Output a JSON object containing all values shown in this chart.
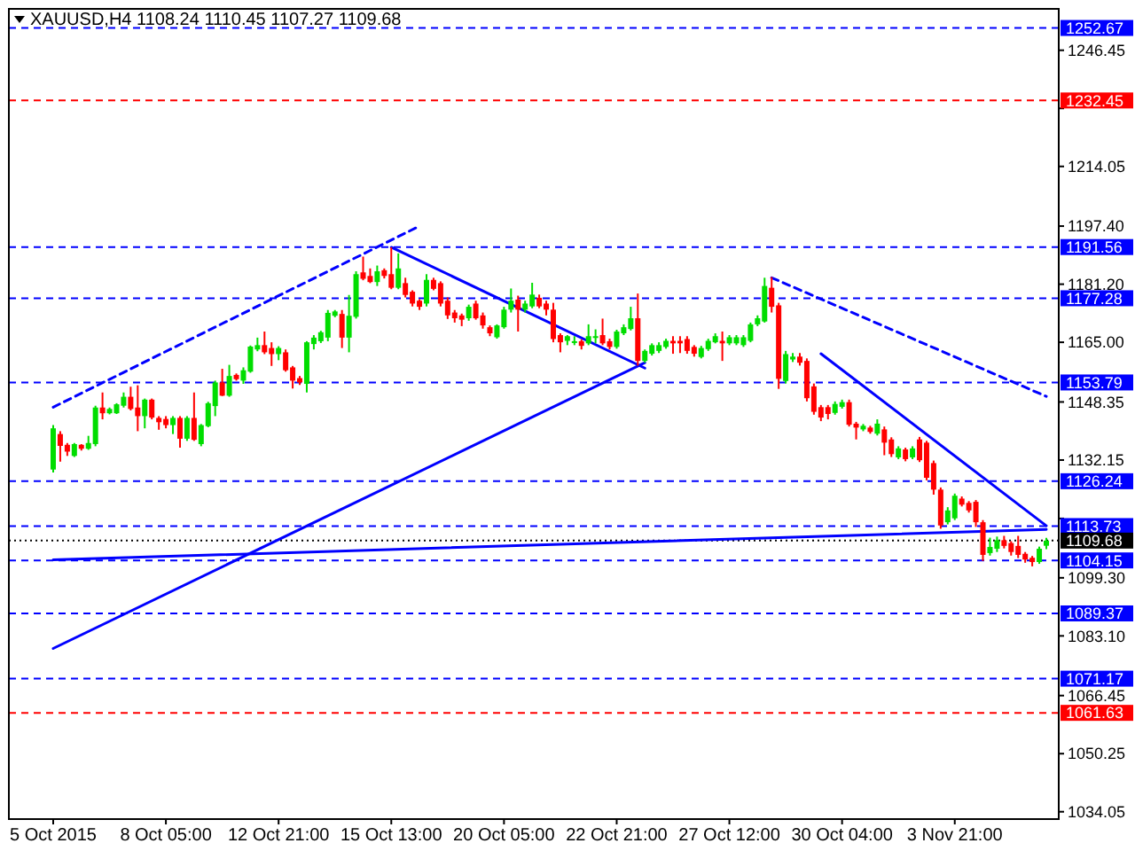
{
  "chart_data": {
    "type": "candlestick",
    "title": "XAUUSD,H4  1108.24 1110.45 1107.27 1109.68",
    "categories": [
      "5 Oct 2015",
      null,
      null,
      null,
      null,
      null,
      null,
      null,
      null,
      null,
      null,
      null,
      null,
      null,
      null,
      null,
      "8 Oct 05:00",
      null,
      null,
      null,
      null,
      null,
      null,
      null,
      null,
      null,
      null,
      null,
      null,
      null,
      null,
      null,
      "12 Oct 21:00",
      null,
      null,
      null,
      null,
      null,
      null,
      null,
      null,
      null,
      null,
      null,
      null,
      null,
      null,
      null,
      "15 Oct 13:00",
      null,
      null,
      null,
      null,
      null,
      null,
      null,
      null,
      null,
      null,
      null,
      null,
      null,
      null,
      null,
      "20 Oct 05:00",
      null,
      null,
      null,
      null,
      null,
      null,
      null,
      null,
      null,
      null,
      null,
      null,
      null,
      null,
      null,
      "22 Oct 21:00",
      null,
      null,
      null,
      null,
      null,
      null,
      null,
      null,
      null,
      null,
      null,
      null,
      null,
      null,
      null,
      "27 Oct 12:00",
      null,
      null,
      null,
      null,
      null,
      null,
      null,
      null,
      null,
      null,
      null,
      null,
      null,
      null,
      null,
      "30 Oct 04:00",
      null,
      null,
      null,
      null,
      null,
      null,
      null,
      null,
      null,
      null,
      null,
      null,
      null,
      null,
      null,
      "3 Nov 21:00",
      null,
      null,
      null,
      null,
      null,
      null,
      null,
      null,
      null,
      null,
      null,
      null,
      null
    ],
    "ylim": [
      1032,
      1258
    ],
    "yticks": [
      {
        "value": 1034.05,
        "label": "1034.05"
      },
      {
        "value": 1050.25,
        "label": "1050.25"
      },
      {
        "value": 1066.45,
        "label": "1066.45"
      },
      {
        "value": 1083.1,
        "label": "1083.10"
      },
      {
        "value": 1099.3,
        "label": "1099.30"
      },
      {
        "value": 1115.85,
        "label": null
      },
      {
        "value": 1132.15,
        "label": "1132.15"
      },
      {
        "value": 1148.35,
        "label": "1148.35"
      },
      {
        "value": 1165,
        "label": "1165.00"
      },
      {
        "value": 1181.2,
        "label": "1181.20"
      },
      {
        "value": 1197.4,
        "label": "1197.40"
      },
      {
        "value": 1214.05,
        "label": "1214.05"
      },
      {
        "value": 1230.25,
        "label": null
      },
      {
        "value": 1246.45,
        "label": "1246.45"
      }
    ],
    "ref_lines": [
      {
        "axis": "y",
        "value": 1252.67,
        "label": "1252.67",
        "color": "#0000ff",
        "line_style": "dashed"
      },
      {
        "axis": "y",
        "value": 1232.45,
        "label": "1232.45",
        "color": "#ff0000",
        "line_style": "dashed"
      },
      {
        "axis": "y",
        "value": 1191.56,
        "label": "1191.56",
        "color": "#0000ff",
        "line_style": "dashed"
      },
      {
        "axis": "y",
        "value": 1177.28,
        "label": "1177.28",
        "color": "#0000ff",
        "line_style": "dashed"
      },
      {
        "axis": "y",
        "value": 1153.79,
        "label": "1153.79",
        "color": "#0000ff",
        "line_style": "dashed"
      },
      {
        "axis": "y",
        "value": 1126.24,
        "label": "1126.24",
        "color": "#0000ff",
        "line_style": "dashed"
      },
      {
        "axis": "y",
        "value": 1113.73,
        "label": "1113.73",
        "color": "#0000ff",
        "line_style": "dashed"
      },
      {
        "axis": "y",
        "value": 1109.68,
        "label": "1109.68",
        "color": "#000000",
        "line_style": "dotted"
      },
      {
        "axis": "y",
        "value": 1104.15,
        "label": "1104.15",
        "color": "#0000ff",
        "line_style": "dashed"
      },
      {
        "axis": "y",
        "value": 1089.37,
        "label": "1089.37",
        "color": "#0000ff",
        "line_style": "dashed"
      },
      {
        "axis": "y",
        "value": 1071.17,
        "label": "1071.17",
        "color": "#0000ff",
        "line_style": "dashed"
      },
      {
        "axis": "y",
        "value": 1061.63,
        "label": "1061.63",
        "color": "#ff0000",
        "line_style": "dashed"
      }
    ],
    "series": [
      {
        "type": "line",
        "color": "#0000ff",
        "line_style": "solid",
        "values": [
          1104.3,
          null,
          null,
          null,
          null,
          null,
          null,
          null,
          null,
          null,
          null,
          null,
          null,
          null,
          null,
          null,
          null,
          null,
          null,
          null,
          null,
          null,
          null,
          null,
          null,
          null,
          null,
          null,
          null,
          null,
          null,
          null,
          null,
          null,
          null,
          null,
          null,
          null,
          null,
          null,
          null,
          null,
          null,
          null,
          null,
          null,
          null,
          null,
          null,
          null,
          null,
          null,
          null,
          null,
          null,
          null,
          null,
          null,
          null,
          null,
          null,
          null,
          null,
          null,
          null,
          null,
          null,
          null,
          null,
          null,
          null,
          null,
          null,
          null,
          null,
          null,
          null,
          null,
          null,
          null,
          null,
          null,
          null,
          null,
          null,
          null,
          null,
          null,
          null,
          null,
          null,
          null,
          null,
          null,
          null,
          null,
          null,
          null,
          null,
          null,
          null,
          null,
          null,
          null,
          null,
          null,
          null,
          null,
          null,
          null,
          null,
          null,
          null,
          null,
          null,
          null,
          null,
          null,
          null,
          null,
          null,
          null,
          null,
          null,
          null,
          null,
          null,
          null,
          null,
          null,
          null,
          null,
          null,
          null,
          null,
          null,
          null,
          null,
          null,
          null,
          null,
          1112.8
        ]
      },
      {
        "type": "line",
        "color": "#0000ff",
        "line_style": "solid",
        "values": [
          1079.6,
          null,
          null,
          null,
          null,
          null,
          null,
          null,
          null,
          null,
          null,
          null,
          null,
          null,
          null,
          null,
          null,
          null,
          null,
          null,
          null,
          null,
          null,
          null,
          null,
          null,
          null,
          null,
          null,
          null,
          null,
          null,
          null,
          null,
          null,
          null,
          null,
          null,
          null,
          null,
          null,
          null,
          null,
          null,
          null,
          null,
          null,
          null,
          null,
          null,
          null,
          null,
          null,
          null,
          null,
          null,
          null,
          null,
          null,
          null,
          null,
          null,
          null,
          null,
          null,
          null,
          null,
          null,
          null,
          null,
          null,
          null,
          null,
          null,
          null,
          null,
          null,
          null,
          null,
          null,
          null,
          null,
          null,
          null,
          1159.3,
          null,
          null,
          null,
          null,
          null,
          null,
          null,
          null,
          null,
          null,
          null,
          null,
          null,
          null,
          null,
          null,
          null,
          null,
          null,
          null,
          null,
          null,
          null,
          null,
          null,
          null,
          null,
          null,
          null,
          null,
          null,
          null,
          null,
          null,
          null,
          null,
          null,
          null,
          null,
          null,
          null,
          null,
          null,
          null,
          null,
          null,
          null,
          null,
          null,
          null,
          null,
          null,
          null,
          null,
          null,
          null,
          null
        ]
      },
      {
        "type": "line",
        "color": "#0000ff",
        "line_style": "solid",
        "values": [
          null,
          null,
          null,
          null,
          null,
          null,
          null,
          null,
          null,
          null,
          null,
          null,
          null,
          null,
          null,
          null,
          null,
          null,
          null,
          null,
          null,
          null,
          null,
          null,
          null,
          null,
          null,
          null,
          null,
          null,
          null,
          null,
          null,
          null,
          null,
          null,
          null,
          null,
          null,
          null,
          null,
          null,
          null,
          null,
          null,
          null,
          null,
          null,
          1191.5,
          null,
          null,
          null,
          null,
          null,
          null,
          null,
          null,
          null,
          null,
          null,
          null,
          null,
          null,
          null,
          null,
          null,
          null,
          null,
          null,
          null,
          null,
          null,
          null,
          null,
          null,
          null,
          null,
          null,
          null,
          null,
          null,
          null,
          null,
          null,
          1157.8,
          null,
          null,
          null,
          null,
          null,
          null,
          null,
          null,
          null,
          null,
          null,
          null,
          null,
          null,
          null,
          null,
          null,
          null,
          null,
          null,
          null,
          null,
          null,
          null,
          null,
          null,
          null,
          null,
          null,
          null,
          null,
          null,
          null,
          null,
          null,
          null,
          null,
          null,
          null,
          null,
          null,
          null,
          null,
          null,
          null,
          null,
          null,
          null,
          null,
          null,
          null,
          null,
          null,
          null,
          null,
          null,
          null
        ]
      },
      {
        "type": "line",
        "color": "#0000ff",
        "line_style": "dashed",
        "values": [
          1146.9,
          null,
          null,
          null,
          null,
          null,
          null,
          null,
          null,
          null,
          null,
          null,
          null,
          null,
          null,
          null,
          null,
          null,
          null,
          null,
          null,
          null,
          null,
          null,
          null,
          null,
          null,
          null,
          null,
          null,
          null,
          null,
          null,
          null,
          null,
          null,
          null,
          null,
          null,
          null,
          null,
          null,
          null,
          null,
          null,
          null,
          null,
          null,
          null,
          null,
          null,
          null,
          1197.4,
          null,
          null,
          null,
          null,
          null,
          null,
          null,
          null,
          null,
          null,
          null,
          null,
          null,
          null,
          null,
          null,
          null,
          null,
          null,
          null,
          null,
          null,
          null,
          null,
          null,
          null,
          null,
          null,
          null,
          null,
          null,
          null,
          null,
          null,
          null,
          null,
          null,
          null,
          null,
          null,
          null,
          null,
          null,
          null,
          null,
          null,
          null,
          null,
          null,
          null,
          null,
          null,
          null,
          null,
          null,
          null,
          null,
          null,
          null,
          null,
          null,
          null,
          null,
          null,
          null,
          null,
          null,
          null,
          null,
          null,
          null,
          null,
          null,
          null,
          null,
          null,
          null,
          null,
          null,
          null,
          null,
          null,
          null,
          null,
          null,
          null,
          null,
          null,
          null
        ]
      },
      {
        "type": "line",
        "color": "#0000ff",
        "line_style": "dashed",
        "values": [
          null,
          null,
          null,
          null,
          null,
          null,
          null,
          null,
          null,
          null,
          null,
          null,
          null,
          null,
          null,
          null,
          null,
          null,
          null,
          null,
          null,
          null,
          null,
          null,
          null,
          null,
          null,
          null,
          null,
          null,
          null,
          null,
          null,
          null,
          null,
          null,
          null,
          null,
          null,
          null,
          null,
          null,
          null,
          null,
          null,
          null,
          null,
          null,
          null,
          null,
          null,
          null,
          null,
          null,
          null,
          null,
          null,
          null,
          null,
          null,
          null,
          null,
          null,
          null,
          null,
          null,
          null,
          null,
          null,
          null,
          null,
          null,
          null,
          null,
          null,
          null,
          null,
          null,
          null,
          null,
          null,
          null,
          null,
          null,
          null,
          null,
          null,
          null,
          null,
          null,
          null,
          null,
          null,
          null,
          null,
          null,
          null,
          null,
          null,
          null,
          null,
          null,
          1183,
          null,
          null,
          null,
          null,
          null,
          null,
          null,
          null,
          null,
          null,
          null,
          null,
          null,
          null,
          null,
          null,
          null,
          null,
          null,
          null,
          null,
          null,
          null,
          null,
          null,
          null,
          null,
          null,
          null,
          null,
          null,
          null,
          null,
          null,
          null,
          null,
          null,
          null,
          1149.9
        ]
      },
      {
        "type": "line",
        "color": "#0000ff",
        "line_style": "solid",
        "values": [
          null,
          null,
          null,
          null,
          null,
          null,
          null,
          null,
          null,
          null,
          null,
          null,
          null,
          null,
          null,
          null,
          null,
          null,
          null,
          null,
          null,
          null,
          null,
          null,
          null,
          null,
          null,
          null,
          null,
          null,
          null,
          null,
          null,
          null,
          null,
          null,
          null,
          null,
          null,
          null,
          null,
          null,
          null,
          null,
          null,
          null,
          null,
          null,
          null,
          null,
          null,
          null,
          null,
          null,
          null,
          null,
          null,
          null,
          null,
          null,
          null,
          null,
          null,
          null,
          null,
          null,
          null,
          null,
          null,
          null,
          null,
          null,
          null,
          null,
          null,
          null,
          null,
          null,
          null,
          null,
          null,
          null,
          null,
          null,
          null,
          null,
          null,
          null,
          null,
          null,
          null,
          null,
          null,
          null,
          null,
          null,
          null,
          null,
          null,
          null,
          null,
          null,
          null,
          null,
          null,
          null,
          null,
          null,
          null,
          1161.8,
          null,
          null,
          null,
          null,
          null,
          null,
          null,
          null,
          null,
          null,
          null,
          null,
          null,
          null,
          null,
          null,
          null,
          null,
          null,
          null,
          null,
          null,
          null,
          null,
          null,
          null,
          null,
          null,
          null,
          null,
          null,
          1113.8
        ]
      }
    ],
    "ohlc": [
      [
        1129.5,
        1141.9,
        1128.7,
        1141
      ],
      [
        1139.4,
        1140.2,
        1131.7,
        1136.1
      ],
      [
        1136.4,
        1136.9,
        1133.3,
        1134.5
      ],
      [
        1133.3,
        1136.9,
        1133,
        1136.6
      ],
      [
        1136.4,
        1136.6,
        1134.8,
        1135.3
      ],
      [
        1135.3,
        1138.9,
        1135,
        1136.9
      ],
      [
        1136.6,
        1147.3,
        1136,
        1146.8
      ],
      [
        1146.8,
        1151,
        1143.5,
        1145.2
      ],
      [
        1145.2,
        1146.8,
        1144.9,
        1146.4
      ],
      [
        1145.2,
        1148,
        1145,
        1147.7
      ],
      [
        1147.3,
        1151,
        1146.8,
        1149.8
      ],
      [
        1149.8,
        1152.6,
        1146,
        1146.4
      ],
      [
        1146.8,
        1153,
        1140.2,
        1144.4
      ],
      [
        1144.4,
        1149.3,
        1141,
        1149
      ],
      [
        1149,
        1149.3,
        1143.5,
        1144
      ],
      [
        1143.9,
        1144.4,
        1140.6,
        1142.7
      ],
      [
        1143.6,
        1144.4,
        1141,
        1141.9
      ],
      [
        1141.9,
        1144.4,
        1139.4,
        1143.9
      ],
      [
        1143.9,
        1144.4,
        1135.6,
        1138.1
      ],
      [
        1138.1,
        1144.4,
        1137.5,
        1143.9
      ],
      [
        1143.9,
        1151,
        1137.5,
        1137.8
      ],
      [
        1136.6,
        1142.2,
        1136,
        1141.9
      ],
      [
        1141.6,
        1148.4,
        1141.3,
        1148
      ],
      [
        1147.2,
        1154.3,
        1144.4,
        1153.8
      ],
      [
        1153.8,
        1157.6,
        1150,
        1150.1
      ],
      [
        1150.1,
        1158.7,
        1149.8,
        1155.6
      ],
      [
        1155.9,
        1156.3,
        1154.3,
        1154.7
      ],
      [
        1154.3,
        1158,
        1153.4,
        1157.2
      ],
      [
        1156.8,
        1164.1,
        1156.5,
        1163.8
      ],
      [
        1163,
        1166.3,
        1162.5,
        1164.2
      ],
      [
        1164.2,
        1168,
        1161.7,
        1162.2
      ],
      [
        1163.4,
        1165,
        1158.4,
        1161.7
      ],
      [
        1161.7,
        1163.9,
        1160,
        1163.4
      ],
      [
        1162.2,
        1163,
        1156.8,
        1157.2
      ],
      [
        1158,
        1158.4,
        1152.1,
        1154.3
      ],
      [
        1155,
        1155.6,
        1153.1,
        1153.8
      ],
      [
        1153.4,
        1165.3,
        1151,
        1165
      ],
      [
        1164.5,
        1167,
        1163,
        1166.3
      ],
      [
        1165.3,
        1168.2,
        1164.8,
        1167.8
      ],
      [
        1166.3,
        1174,
        1165.3,
        1173.2
      ],
      [
        1172.4,
        1174,
        1172,
        1173.6
      ],
      [
        1172.9,
        1174,
        1163.4,
        1166.3
      ],
      [
        1166.3,
        1178.2,
        1162.2,
        1172.4
      ],
      [
        1172.1,
        1184.8,
        1171.6,
        1184
      ],
      [
        1184.5,
        1188.9,
        1182.3,
        1182.7
      ],
      [
        1183.5,
        1185.6,
        1181.5,
        1181.8
      ],
      [
        1181.8,
        1186.4,
        1180.7,
        1184.8
      ],
      [
        1185.1,
        1185.6,
        1182.8,
        1183.5
      ],
      [
        1184,
        1191.5,
        1179.8,
        1180.2
      ],
      [
        1180.2,
        1189.8,
        1179.8,
        1185.6
      ],
      [
        1181.5,
        1183,
        1177.5,
        1178.2
      ],
      [
        1179.1,
        1179.5,
        1175,
        1175.8
      ],
      [
        1176.6,
        1177,
        1174,
        1174.9
      ],
      [
        1175.8,
        1184,
        1175,
        1182.4
      ],
      [
        1182.4,
        1183,
        1179.5,
        1179.9
      ],
      [
        1181.5,
        1182,
        1175,
        1175.8
      ],
      [
        1176.6,
        1177.5,
        1171.5,
        1172.5
      ],
      [
        1173.3,
        1174,
        1170.5,
        1171.7
      ],
      [
        1172.5,
        1173,
        1169.5,
        1171.3
      ],
      [
        1171.7,
        1175.5,
        1171,
        1174.9
      ],
      [
        1175.8,
        1176.6,
        1171.3,
        1171.7
      ],
      [
        1172.5,
        1173.3,
        1168.8,
        1169.7
      ],
      [
        1169.2,
        1169.7,
        1166.7,
        1167.5
      ],
      [
        1166.4,
        1170,
        1166,
        1169.7
      ],
      [
        1169.2,
        1174.9,
        1168.8,
        1174.1
      ],
      [
        1174.1,
        1180,
        1173.3,
        1176.6
      ],
      [
        1176.9,
        1178,
        1168,
        1174.1
      ],
      [
        1174.1,
        1176.6,
        1173.3,
        1175.8
      ],
      [
        1175,
        1181.6,
        1174.5,
        1178.3
      ],
      [
        1177.4,
        1178.3,
        1174.5,
        1175
      ],
      [
        1175.8,
        1176.6,
        1172.5,
        1174.1
      ],
      [
        1174.1,
        1176,
        1165,
        1165.9
      ],
      [
        1167,
        1167.5,
        1162.2,
        1165
      ],
      [
        1165.4,
        1167,
        1164.2,
        1166.7
      ],
      [
        1165,
        1166.7,
        1164.2,
        1165.3
      ],
      [
        1165.3,
        1165.8,
        1163,
        1164
      ],
      [
        1164.7,
        1170,
        1164.2,
        1166.7
      ],
      [
        1166.2,
        1168.6,
        1164.7,
        1166.7
      ],
      [
        1167,
        1171.6,
        1164.2,
        1164.7
      ],
      [
        1165.3,
        1166,
        1163,
        1163.7
      ],
      [
        1163.7,
        1168.5,
        1163.2,
        1168
      ],
      [
        1167.5,
        1170,
        1167,
        1169.2
      ],
      [
        1168.7,
        1174.9,
        1168.3,
        1171.7
      ],
      [
        1171.7,
        1178.6,
        1158.5,
        1159.8
      ],
      [
        1159.8,
        1163,
        1159.3,
        1162.6
      ],
      [
        1161.8,
        1164.7,
        1161.3,
        1164.2
      ],
      [
        1162.6,
        1165,
        1162,
        1164.2
      ],
      [
        1163.7,
        1166,
        1163.2,
        1165.4
      ],
      [
        1165.4,
        1166.7,
        1161.8,
        1164.7
      ],
      [
        1165.4,
        1166.7,
        1162,
        1164.7
      ],
      [
        1165.9,
        1166.7,
        1161.8,
        1162.6
      ],
      [
        1163.7,
        1164.2,
        1161,
        1161.8
      ],
      [
        1160.9,
        1164,
        1160.5,
        1163.4
      ],
      [
        1163.1,
        1166,
        1162.6,
        1165.4
      ],
      [
        1165,
        1167.5,
        1164.7,
        1166.7
      ],
      [
        1165.4,
        1168,
        1159.8,
        1164.7
      ],
      [
        1164.7,
        1167,
        1164.2,
        1166.4
      ],
      [
        1164.7,
        1167,
        1164.2,
        1166.4
      ],
      [
        1164.2,
        1167,
        1163.7,
        1166.4
      ],
      [
        1165.4,
        1170.5,
        1165,
        1170
      ],
      [
        1170,
        1172.5,
        1169.5,
        1171.7
      ],
      [
        1170.8,
        1183,
        1170.5,
        1180.7
      ],
      [
        1180.2,
        1183.2,
        1173.3,
        1174.9
      ],
      [
        1175.3,
        1176,
        1152,
        1154.8
      ],
      [
        1154.2,
        1162.6,
        1153.5,
        1161.7
      ],
      [
        1160.2,
        1162,
        1159.5,
        1161
      ],
      [
        1161,
        1162,
        1158.5,
        1159.3
      ],
      [
        1159.8,
        1160.5,
        1148.5,
        1149.4
      ],
      [
        1152.7,
        1153.5,
        1144.8,
        1145.6
      ],
      [
        1146.9,
        1147.5,
        1143,
        1144
      ],
      [
        1146.9,
        1147.5,
        1143.5,
        1145
      ],
      [
        1145.3,
        1148.5,
        1144.8,
        1147.8
      ],
      [
        1147,
        1149,
        1146.5,
        1148.3
      ],
      [
        1148.3,
        1149,
        1141.5,
        1142
      ],
      [
        1142.3,
        1142.8,
        1137.9,
        1141.2
      ],
      [
        1140.7,
        1142.2,
        1140.2,
        1141.7
      ],
      [
        1141.2,
        1141.7,
        1139.5,
        1140
      ],
      [
        1139.5,
        1143.5,
        1139,
        1142.3
      ],
      [
        1140.7,
        1141.5,
        1133.5,
        1137
      ],
      [
        1137.9,
        1138.5,
        1133,
        1133.8
      ],
      [
        1132.9,
        1136,
        1132.4,
        1135.4
      ],
      [
        1135.1,
        1135.6,
        1131.8,
        1132.4
      ],
      [
        1132.9,
        1136,
        1132.4,
        1135.4
      ],
      [
        1137.9,
        1138.6,
        1131.6,
        1132.1
      ],
      [
        1137,
        1137.5,
        1126.5,
        1127.2
      ],
      [
        1131.3,
        1132,
        1122.5,
        1123.9
      ],
      [
        1123.9,
        1124.5,
        1113,
        1113.9
      ],
      [
        1114.8,
        1119,
        1114.2,
        1118.1
      ],
      [
        1115.9,
        1122.8,
        1115.4,
        1122.2
      ],
      [
        1121.4,
        1122,
        1119.2,
        1119.7
      ],
      [
        1120.2,
        1120.7,
        1117.5,
        1118.1
      ],
      [
        1120.5,
        1121,
        1113.5,
        1114.8
      ],
      [
        1114.8,
        1115.4,
        1104,
        1105.7
      ],
      [
        1106.2,
        1110.5,
        1105.5,
        1107.9
      ],
      [
        1107.4,
        1110.8,
        1106.5,
        1109.8
      ],
      [
        1109.8,
        1111,
        1107.5,
        1108.2
      ],
      [
        1109,
        1109.5,
        1105.5,
        1106.5
      ],
      [
        1108.2,
        1111,
        1104.8,
        1105.7
      ],
      [
        1106,
        1106.5,
        1103.5,
        1104.4
      ],
      [
        1104.9,
        1105.4,
        1102.5,
        1103.7
      ],
      [
        1103.7,
        1108,
        1103.2,
        1107.4
      ],
      [
        1108.24,
        1110.45,
        1107.27,
        1109.68
      ]
    ]
  }
}
